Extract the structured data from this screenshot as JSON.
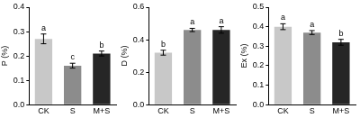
{
  "chart_data": [
    {
      "type": "bar",
      "y_label": "P (%)",
      "categories": [
        "CK",
        "S",
        "M+S"
      ],
      "values": [
        0.27,
        0.16,
        0.21
      ],
      "errors": [
        0.02,
        0.01,
        0.01
      ],
      "annotations": [
        "a",
        "c",
        "b"
      ],
      "colors": [
        "#c8c8c8",
        "#8c8c8c",
        "#262626"
      ],
      "ylim": [
        0,
        0.4
      ],
      "yticks": [
        {
          "value": 0,
          "label": "0.0"
        },
        0.1,
        0.2,
        0.3,
        0.4
      ],
      "grid": false
    },
    {
      "type": "bar",
      "y_label": "D (%)",
      "categories": [
        "CK",
        "S",
        "M+S"
      ],
      "values": [
        0.32,
        0.46,
        0.46
      ],
      "errors": [
        0.015,
        0.01,
        0.02
      ],
      "annotations": [
        "b",
        "a",
        "a"
      ],
      "colors": [
        "#c8c8c8",
        "#8c8c8c",
        "#262626"
      ],
      "ylim": [
        0,
        0.6
      ],
      "yticks": [
        {
          "value": 0,
          "label": "0.0"
        },
        0.2,
        0.4,
        0.6
      ],
      "grid": false
    },
    {
      "type": "bar",
      "y_label": "Ex (%)",
      "categories": [
        "CK",
        "S",
        "M+S"
      ],
      "values": [
        0.4,
        0.37,
        0.32
      ],
      "errors": [
        0.015,
        0.01,
        0.015
      ],
      "annotations": [
        "a",
        "a",
        "b"
      ],
      "colors": [
        "#c8c8c8",
        "#8c8c8c",
        "#262626"
      ],
      "ylim": [
        0,
        0.5
      ],
      "yticks": [
        {
          "value": 0,
          "label": "0.0"
        },
        0.1,
        0.2,
        0.3,
        0.4,
        0.5
      ],
      "grid": false
    }
  ]
}
